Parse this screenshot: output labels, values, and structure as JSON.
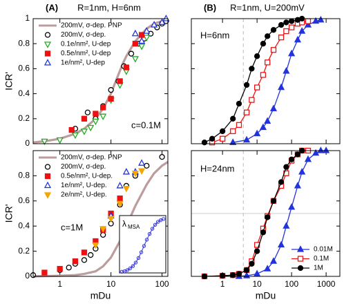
{
  "chart_data": [
    {
      "type": "line",
      "panel_label": "(A)",
      "title": "R=1nm, H=6nm",
      "ylabel": "ICR'",
      "annotation": "c=0.1M",
      "xscale": "log",
      "xlim": [
        0.3,
        130
      ],
      "xticks": [
        1,
        10,
        100
      ],
      "show_xtick_labels": false,
      "ylim": [
        0,
        1
      ],
      "yticks": [
        0,
        0.2,
        0.4,
        0.6,
        0.8,
        1
      ],
      "show_ytick_labels": true,
      "legend": "upper left",
      "series": [
        {
          "name": "200mV, σ-dep. PNP",
          "color": "#bc9c9c",
          "marker": "none",
          "line": true,
          "x": [
            0.3,
            0.5,
            1,
            2,
            3,
            5,
            7,
            10,
            13,
            17,
            20,
            30,
            50,
            70,
            100,
            130
          ],
          "values": [
            0.01,
            0.02,
            0.04,
            0.08,
            0.12,
            0.2,
            0.28,
            0.4,
            0.52,
            0.64,
            0.7,
            0.82,
            0.92,
            0.96,
            0.98,
            0.99
          ]
        },
        {
          "name": "200mV, σ-dep.",
          "color": "#000000",
          "marker": "circle-open",
          "line": false,
          "x": [
            2,
            3.5,
            5,
            7,
            10,
            14,
            18,
            25,
            35,
            45,
            60,
            80,
            100,
            120
          ],
          "values": [
            0.12,
            0.25,
            0.2,
            0.3,
            0.43,
            0.5,
            0.62,
            0.72,
            0.8,
            0.84,
            0.88,
            0.93,
            0.96,
            0.98
          ]
        },
        {
          "name": "0.1e/nm², U-dep",
          "color": "#22aa22",
          "marker": "triangle-down-open",
          "line": false,
          "x": [
            0.5,
            1,
            2,
            3,
            4,
            5,
            7,
            10,
            15,
            20,
            30,
            40,
            50
          ],
          "values": [
            0.02,
            0.03,
            0.07,
            0.1,
            0.13,
            0.18,
            0.22,
            0.35,
            0.47,
            0.58,
            0.68,
            0.78,
            0.85
          ]
        },
        {
          "name": "0.5e/nm², U-dep",
          "color": "#ee1111",
          "marker": "square",
          "line": false,
          "x": [
            1.7,
            3,
            5,
            7,
            10,
            15,
            20,
            30,
            40
          ],
          "values": [
            0.11,
            0.2,
            0.24,
            0.29,
            0.36,
            0.5,
            0.61,
            0.8,
            0.87
          ]
        },
        {
          "name": "1e/nm², U-dep",
          "color": "#2233dd",
          "marker": "triangle-up-open",
          "line": false,
          "x": [
            30,
            40,
            50,
            70,
            100,
            120
          ],
          "values": [
            0.88,
            0.82,
            0.9,
            0.95,
            0.97,
            1.0
          ]
        }
      ]
    },
    {
      "type": "line",
      "ylabel": "ICR'",
      "xlabel": "mDu",
      "annotation": "c=1M",
      "xscale": "log",
      "xlim": [
        0.3,
        130
      ],
      "xticks": [
        1,
        10,
        100
      ],
      "show_xtick_labels": true,
      "ylim": [
        0,
        1
      ],
      "yticks": [
        0,
        0.2,
        0.4,
        0.6,
        0.8
      ],
      "show_ytick_labels": true,
      "legend": "upper left",
      "series": [
        {
          "name": "200mV, σ-dep. PNP",
          "color": "#bc9c9c",
          "marker": "none",
          "line": true,
          "x": [
            0.3,
            1,
            2,
            3,
            5,
            7,
            10,
            15,
            20,
            30,
            50,
            70,
            100,
            130
          ],
          "values": [
            0,
            0.005,
            0.01,
            0.02,
            0.04,
            0.08,
            0.15,
            0.28,
            0.4,
            0.56,
            0.73,
            0.82,
            0.88,
            0.91
          ]
        },
        {
          "name": "200mV, σ-dep.",
          "color": "#000000",
          "marker": "circle-open",
          "line": false,
          "x": [
            0.3,
            1,
            1.5,
            2,
            3,
            4,
            5,
            7,
            10,
            15,
            20,
            30,
            50,
            100
          ],
          "values": [
            0.01,
            0.05,
            0.07,
            0.1,
            0.13,
            0.17,
            0.22,
            0.33,
            0.42,
            0.57,
            0.72,
            0.8,
            0.88,
            0.95
          ]
        },
        {
          "name": "0.5e/nm², U-dep.",
          "color": "#ee1111",
          "marker": "square",
          "line": false,
          "x": [
            0.5,
            1,
            2,
            3,
            5,
            7,
            10,
            15
          ],
          "values": [
            0.03,
            0.06,
            0.12,
            0.19,
            0.28,
            0.37,
            0.5,
            0.62
          ]
        },
        {
          "name": "1e/nm², U-dep.",
          "color": "#2233dd",
          "marker": "triangle-up-open",
          "line": false,
          "x": [
            10,
            15,
            20,
            30,
            40
          ],
          "values": [
            0.48,
            0.72,
            0.83,
            0.83,
            0.9
          ]
        },
        {
          "name": "2e/nm², U-dep.",
          "color": "#f5a500",
          "marker": "triangle-down",
          "line": false,
          "x": [
            5,
            7,
            10,
            15,
            20,
            30,
            40
          ],
          "values": [
            0.25,
            0.38,
            0.46,
            0.58,
            0.7,
            0.82,
            0.84
          ]
        }
      ],
      "inset": {
        "label_symbol": "λ",
        "label_subscript": "MSA",
        "color": "#3333cc",
        "xlim": [
          0,
          1
        ],
        "ylim": [
          0,
          1
        ],
        "x": [
          0.05,
          0.11,
          0.17,
          0.23,
          0.29,
          0.35,
          0.41,
          0.47,
          0.53,
          0.59,
          0.65,
          0.71,
          0.77,
          0.83,
          0.89,
          0.95
        ],
        "values": [
          0.02,
          0.03,
          0.05,
          0.08,
          0.12,
          0.18,
          0.26,
          0.36,
          0.47,
          0.58,
          0.68,
          0.77,
          0.84,
          0.89,
          0.92,
          0.94
        ]
      }
    },
    {
      "type": "line",
      "panel_label": "(B)",
      "title": "R=1nm, U=200mV",
      "annotation": "H=6nm",
      "xscale": "log",
      "xlim": [
        0.125,
        2500
      ],
      "xticks": [
        1,
        10,
        100,
        1000
      ],
      "show_xtick_labels": false,
      "ylim": [
        0,
        1
      ],
      "yticks": [
        0,
        0.2,
        0.4,
        0.6,
        0.8,
        1
      ],
      "show_ytick_labels": false,
      "vline": 4,
      "series": [
        {
          "name": "0.01M",
          "color": "#2233dd",
          "marker": "triangle-up",
          "line": true,
          "x": [
            2,
            5,
            10,
            15,
            20,
            30,
            50,
            70,
            100,
            150,
            200,
            300,
            500,
            700
          ],
          "values": [
            0.01,
            0.03,
            0.08,
            0.13,
            0.18,
            0.28,
            0.45,
            0.58,
            0.72,
            0.83,
            0.9,
            0.95,
            0.98,
            0.99
          ]
        },
        {
          "name": "0.1M",
          "color": "#ee1111",
          "marker": "square-open",
          "line": true,
          "x": [
            0.5,
            1,
            2,
            3,
            5,
            7,
            10,
            15,
            20,
            30,
            50,
            70,
            100,
            150,
            200,
            300
          ],
          "values": [
            0.01,
            0.04,
            0.1,
            0.15,
            0.25,
            0.35,
            0.45,
            0.55,
            0.65,
            0.75,
            0.85,
            0.9,
            0.93,
            0.96,
            0.97,
            0.98
          ]
        },
        {
          "name": "1M",
          "color": "#000000",
          "marker": "circle",
          "line": true,
          "x": [
            0.3,
            0.5,
            1,
            2,
            3,
            5,
            7,
            10,
            15,
            20,
            30,
            50,
            70,
            100,
            150,
            200
          ],
          "values": [
            0.01,
            0.04,
            0.1,
            0.2,
            0.32,
            0.47,
            0.6,
            0.7,
            0.8,
            0.86,
            0.91,
            0.95,
            0.97,
            0.98,
            0.99,
            1
          ]
        }
      ]
    },
    {
      "type": "line",
      "xlabel": "mDu",
      "annotation": "H=24nm",
      "xscale": "log",
      "xlim": [
        0.125,
        2500
      ],
      "xticks": [
        1,
        10,
        100,
        1000
      ],
      "show_xtick_labels": true,
      "ylim": [
        0,
        1
      ],
      "yticks": [
        0,
        0.2,
        0.4,
        0.6,
        0.8,
        1
      ],
      "show_ytick_labels": false,
      "vline": 4,
      "hline": 0.5,
      "legend": "lower right",
      "series": [
        {
          "name": "0.01M",
          "color": "#2233dd",
          "marker": "triangle-up",
          "line": true,
          "x": [
            3,
            5,
            10,
            20,
            30,
            50,
            70,
            100,
            150,
            200,
            300,
            500,
            700,
            1000
          ],
          "values": [
            0,
            0.005,
            0.02,
            0.06,
            0.12,
            0.25,
            0.4,
            0.55,
            0.72,
            0.83,
            0.93,
            0.98,
            1,
            1
          ]
        },
        {
          "name": "0.1M",
          "color": "#ee1111",
          "marker": "square-open",
          "line": true,
          "x": [
            0.3,
            1,
            2,
            3,
            5,
            7,
            10,
            15,
            20,
            30,
            50,
            70,
            100,
            150,
            200,
            300
          ],
          "values": [
            0,
            0.005,
            0.01,
            0.02,
            0.05,
            0.12,
            0.25,
            0.38,
            0.48,
            0.6,
            0.72,
            0.82,
            0.92,
            0.97,
            1,
            1
          ]
        },
        {
          "name": "1M",
          "color": "#000000",
          "marker": "circle",
          "line": true,
          "x": [
            0.3,
            1,
            2,
            3,
            5,
            7,
            10,
            15,
            20,
            30,
            50,
            70,
            100,
            150,
            200
          ],
          "values": [
            0,
            0.005,
            0.01,
            0.02,
            0.05,
            0.1,
            0.2,
            0.35,
            0.47,
            0.6,
            0.75,
            0.87,
            0.93,
            0.97,
            1
          ]
        }
      ]
    }
  ]
}
